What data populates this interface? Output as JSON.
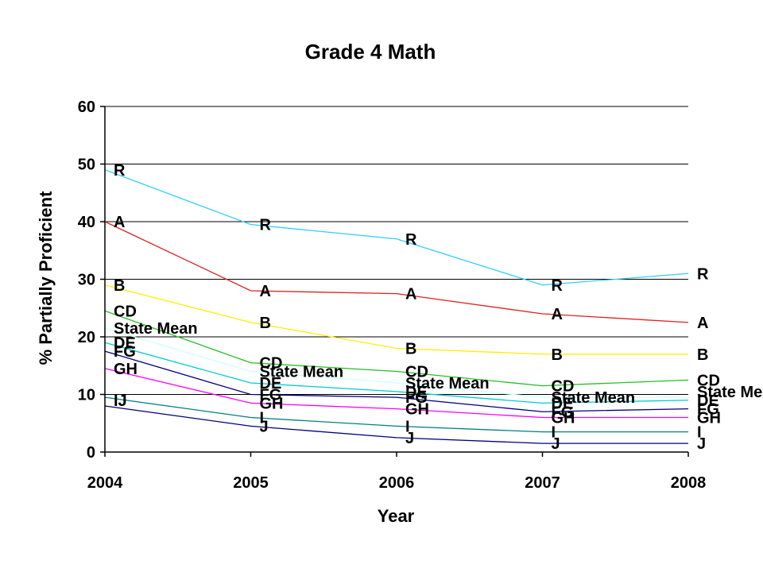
{
  "chart_data": {
    "type": "line",
    "title": "Grade 4 Math",
    "xlabel": "Year",
    "ylabel": "% Partially Proficient",
    "x": [
      2004,
      2005,
      2006,
      2007,
      2008
    ],
    "x_tick_labels": [
      "2004",
      "2005",
      "2006",
      "2007",
      "2008"
    ],
    "ylim": [
      0,
      60
    ],
    "y_ticks": [
      0,
      10,
      20,
      30,
      40,
      50,
      60
    ],
    "y_tick_labels": [
      "0",
      "10",
      "20",
      "30",
      "40",
      "50",
      "60"
    ],
    "grid": true,
    "legend": "none",
    "series": [
      {
        "name": "R",
        "color": "#33ccff",
        "values": [
          49,
          39.5,
          37,
          29,
          31
        ]
      },
      {
        "name": "A",
        "color": "#e02020",
        "values": [
          40,
          28,
          27.5,
          24,
          22.5
        ]
      },
      {
        "name": "B",
        "color": "#ffee00",
        "values": [
          29,
          22.5,
          18,
          17,
          17
        ]
      },
      {
        "name": "CD",
        "color": "#22c022",
        "values": [
          24.5,
          15.5,
          14,
          11.5,
          12.5
        ]
      },
      {
        "name": "State Mean",
        "color": "#ccffff",
        "values": [
          21.5,
          14,
          12,
          9.5,
          9.5
        ]
      },
      {
        "name": "DE",
        "color": "#00cccc",
        "values": [
          19,
          12,
          10.5,
          8.5,
          9
        ]
      },
      {
        "name": "FG",
        "color": "#000080",
        "values": [
          17.5,
          10,
          9.5,
          7,
          7.5
        ]
      },
      {
        "name": "GH",
        "color": "#ff00ff",
        "values": [
          14.5,
          8.5,
          7.5,
          6,
          6
        ]
      },
      {
        "name": "I",
        "color": "#008080",
        "values": [
          9.5,
          6,
          4.5,
          3.5,
          3.5
        ]
      },
      {
        "name": "J",
        "color": "#000080",
        "values": [
          8,
          4.5,
          2.5,
          1.5,
          1.5
        ]
      }
    ],
    "point_labels": [
      {
        "text": "R",
        "x": 2004,
        "y": 49
      },
      {
        "text": "A",
        "x": 2004,
        "y": 40
      },
      {
        "text": "B",
        "x": 2004,
        "y": 29
      },
      {
        "text": "CD",
        "x": 2004,
        "y": 24.5
      },
      {
        "text": "State Mean",
        "x": 2004,
        "y": 21.5
      },
      {
        "text": "DE",
        "x": 2004,
        "y": 19
      },
      {
        "text": "FG",
        "x": 2004,
        "y": 17.5
      },
      {
        "text": "GH",
        "x": 2004,
        "y": 14.5
      },
      {
        "text": "IJ",
        "x": 2004,
        "y": 9
      },
      {
        "text": "R",
        "x": 2005,
        "y": 39.5
      },
      {
        "text": "A",
        "x": 2005,
        "y": 28
      },
      {
        "text": "B",
        "x": 2005,
        "y": 22.5
      },
      {
        "text": "CD",
        "x": 2005,
        "y": 15.5
      },
      {
        "text": "State Mean",
        "x": 2005,
        "y": 14
      },
      {
        "text": "DE",
        "x": 2005,
        "y": 12
      },
      {
        "text": "FG",
        "x": 2005,
        "y": 10
      },
      {
        "text": "GH",
        "x": 2005,
        "y": 8.5
      },
      {
        "text": "I",
        "x": 2005,
        "y": 6
      },
      {
        "text": "J",
        "x": 2005,
        "y": 4.5
      },
      {
        "text": "R",
        "x": 2006,
        "y": 37
      },
      {
        "text": "A",
        "x": 2006,
        "y": 27.5
      },
      {
        "text": "B",
        "x": 2006,
        "y": 18
      },
      {
        "text": "CD",
        "x": 2006,
        "y": 14
      },
      {
        "text": "State Mean",
        "x": 2006,
        "y": 12
      },
      {
        "text": "DE",
        "x": 2006,
        "y": 10.5
      },
      {
        "text": "FG",
        "x": 2006,
        "y": 9.5
      },
      {
        "text": "GH",
        "x": 2006,
        "y": 7.5
      },
      {
        "text": "I",
        "x": 2006,
        "y": 4.5
      },
      {
        "text": "J",
        "x": 2006,
        "y": 2.5
      },
      {
        "text": "R",
        "x": 2007,
        "y": 29
      },
      {
        "text": "A",
        "x": 2007,
        "y": 24
      },
      {
        "text": "B",
        "x": 2007,
        "y": 17
      },
      {
        "text": "CD",
        "x": 2007,
        "y": 11.5
      },
      {
        "text": "State Mean",
        "x": 2007,
        "y": 9.5
      },
      {
        "text": "DE",
        "x": 2007,
        "y": 8.5
      },
      {
        "text": "FG",
        "x": 2007,
        "y": 7
      },
      {
        "text": "GH",
        "x": 2007,
        "y": 6
      },
      {
        "text": "I",
        "x": 2007,
        "y": 3.5
      },
      {
        "text": "J",
        "x": 2007,
        "y": 1.5
      },
      {
        "text": "R",
        "x": 2008,
        "y": 31
      },
      {
        "text": "A",
        "x": 2008,
        "y": 22.5
      },
      {
        "text": "B",
        "x": 2008,
        "y": 17
      },
      {
        "text": "CD",
        "x": 2008,
        "y": 12.5
      },
      {
        "text": "State Mean",
        "x": 2008,
        "y": 10.5
      },
      {
        "text": "DE",
        "x": 2008,
        "y": 9
      },
      {
        "text": "FG",
        "x": 2008,
        "y": 7.5
      },
      {
        "text": "GH",
        "x": 2008,
        "y": 6
      },
      {
        "text": "I",
        "x": 2008,
        "y": 3.5
      },
      {
        "text": "J",
        "x": 2008,
        "y": 1.5
      }
    ]
  }
}
